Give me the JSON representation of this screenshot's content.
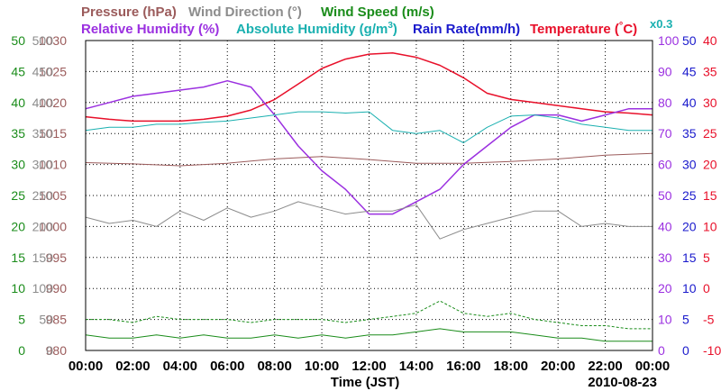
{
  "chart_data": {
    "type": "line",
    "date": "2010-08-23",
    "xlabel": "Time (JST)",
    "x_ticks": [
      "00:00",
      "02:00",
      "04:00",
      "06:00",
      "08:00",
      "10:00",
      "12:00",
      "14:00",
      "16:00",
      "18:00",
      "20:00",
      "22:00",
      "00:00"
    ],
    "xlim": [
      0,
      24
    ],
    "grid": true,
    "legend_row1": [
      {
        "text": "Pressure (hPa)",
        "color": "#9b5b5b"
      },
      {
        "text": "Wind Direction (°)",
        "color": "#8c8c8c"
      },
      {
        "text": "Wind Speed (m/s)",
        "color": "#1a8c1a"
      }
    ],
    "legend_row2": [
      {
        "text": "Relative Humidity (%)",
        "color": "#9b30e0"
      },
      {
        "text": "Absolute Humidity (g/m",
        "sup": "3",
        "close": ")",
        "color": "#1ab0b0"
      },
      {
        "text": "Rain Rate(mm/h)",
        "color": "#1a1acc"
      },
      {
        "text": "Temperature (",
        "deg": "°",
        "unit": "C)",
        "color": "#e8102a"
      }
    ],
    "rain_scale_note": {
      "text": "x0.3",
      "color": "#1ab0b0"
    },
    "axes": [
      {
        "name": "pressure",
        "unit": "hPa",
        "color": "#9b5b5b",
        "side": "left",
        "range": [
          980,
          1030
        ],
        "ticks": [
          "1030",
          "1025",
          "1020",
          "1015",
          "1010",
          "1005",
          "1000",
          "995",
          "990",
          "985",
          "980"
        ]
      },
      {
        "name": "wind-direction",
        "unit": "°",
        "color": "#8c8c8c",
        "side": "left",
        "range": [
          0,
          500
        ],
        "ticks": [
          "500",
          "450",
          "400",
          "350",
          "300",
          "250",
          "200",
          "150",
          "100",
          "50",
          "0"
        ]
      },
      {
        "name": "wind-speed",
        "unit": "m/s",
        "color": "#1a8c1a",
        "side": "left",
        "range": [
          0,
          50
        ],
        "ticks": [
          "50",
          "45",
          "40",
          "35",
          "30",
          "25",
          "20",
          "15",
          "10",
          "5",
          "0"
        ]
      },
      {
        "name": "relative-humidity",
        "unit": "%",
        "color": "#9b30e0",
        "side": "right",
        "range": [
          0,
          100
        ],
        "ticks": [
          "100",
          "90",
          "80",
          "70",
          "60",
          "50",
          "40",
          "30",
          "20",
          "10",
          "0"
        ]
      },
      {
        "name": "rain-rate",
        "unit": "mm/h",
        "color": "#1a1acc",
        "side": "right",
        "range": [
          0,
          50
        ],
        "ticks": [
          "50",
          "45",
          "40",
          "35",
          "30",
          "25",
          "20",
          "15",
          "10",
          "5",
          "0"
        ]
      },
      {
        "name": "temperature",
        "unit": "°C",
        "color": "#e8102a",
        "side": "right",
        "range": [
          -10,
          40
        ],
        "ticks": [
          "40",
          "35",
          "30",
          "25",
          "20",
          "15",
          "10",
          "5",
          "0",
          "-5",
          "-10"
        ]
      }
    ],
    "series": [
      {
        "name": "Pressure (hPa)",
        "color": "#9b5b5b",
        "axis": "pressure",
        "x": [
          0,
          2,
          4,
          6,
          8,
          10,
          12,
          14,
          16,
          18,
          20,
          22,
          24
        ],
        "y": [
          1010.3,
          1010.1,
          1009.8,
          1010.2,
          1010.9,
          1011.3,
          1010.8,
          1010.2,
          1010.2,
          1010.5,
          1010.9,
          1011.5,
          1011.8
        ]
      },
      {
        "name": "Temperature (°C)",
        "color": "#e8102a",
        "axis": "temperature",
        "x": [
          0,
          1,
          2,
          3,
          4,
          5,
          6,
          7,
          8,
          9,
          10,
          11,
          12,
          13,
          14,
          15,
          16,
          17,
          18,
          19,
          20,
          21,
          22,
          23,
          24
        ],
        "y": [
          27.7,
          27.3,
          27.0,
          27.0,
          27.0,
          27.3,
          27.8,
          28.8,
          30.5,
          33.0,
          35.5,
          37.0,
          37.8,
          38.0,
          37.3,
          36.0,
          34.0,
          31.5,
          30.5,
          30.0,
          29.5,
          29.0,
          28.5,
          28.3,
          28.0
        ]
      },
      {
        "name": "Relative Humidity (%)",
        "color": "#9b30e0",
        "axis": "relative-humidity",
        "x": [
          0,
          1,
          2,
          3,
          4,
          5,
          6,
          7,
          8,
          9,
          10,
          11,
          12,
          13,
          14,
          15,
          16,
          17,
          18,
          19,
          20,
          21,
          22,
          23,
          24
        ],
        "y": [
          78,
          80,
          82,
          83,
          84,
          85,
          87,
          85,
          76,
          66,
          58,
          52,
          44,
          44,
          48,
          52,
          60,
          66,
          72,
          76,
          76,
          74,
          76,
          78,
          78
        ]
      },
      {
        "name": "Absolute Humidity (g/m3)",
        "color": "#1ab0b0",
        "axis": "rain-rate",
        "x": [
          0,
          1,
          2,
          3,
          4,
          5,
          6,
          7,
          8,
          9,
          10,
          11,
          12,
          13,
          14,
          15,
          16,
          17,
          18,
          19,
          20,
          21,
          22,
          23,
          24
        ],
        "y": [
          35.5,
          36.0,
          36.0,
          36.5,
          36.5,
          36.8,
          37.0,
          37.5,
          38.0,
          38.5,
          38.5,
          38.3,
          38.5,
          35.5,
          35.0,
          35.5,
          33.5,
          36.0,
          37.8,
          38.0,
          37.5,
          36.5,
          36.0,
          35.5,
          35.5
        ]
      },
      {
        "name": "Wind Direction (°)",
        "color": "#8c8c8c",
        "axis": "wind-direction",
        "x": [
          0,
          1,
          2,
          3,
          4,
          5,
          6,
          7,
          8,
          9,
          10,
          11,
          12,
          13,
          14,
          15,
          16,
          17,
          18,
          19,
          20,
          21,
          22,
          23,
          24
        ],
        "y": [
          215,
          205,
          210,
          200,
          225,
          210,
          230,
          215,
          225,
          240,
          230,
          220,
          225,
          225,
          235,
          180,
          195,
          205,
          215,
          225,
          225,
          200,
          205,
          200,
          200
        ]
      },
      {
        "name": "Wind Speed (m/s) max",
        "color": "#1a8c1a",
        "axis": "wind-speed",
        "x": [
          0,
          1,
          2,
          3,
          4,
          5,
          6,
          7,
          8,
          9,
          10,
          11,
          12,
          13,
          14,
          15,
          16,
          17,
          18,
          19,
          20,
          21,
          22,
          23,
          24
        ],
        "y": [
          5.0,
          5.0,
          4.5,
          5.5,
          5.0,
          5.0,
          5.0,
          4.5,
          5.0,
          5.0,
          5.0,
          4.5,
          5.0,
          5.5,
          6.0,
          8.0,
          6.0,
          5.5,
          6.0,
          5.0,
          4.5,
          4.0,
          4.0,
          3.5,
          3.5
        ]
      },
      {
        "name": "Wind Speed (m/s) mean",
        "color": "#1a8c1a",
        "axis": "wind-speed",
        "x": [
          0,
          1,
          2,
          3,
          4,
          5,
          6,
          7,
          8,
          9,
          10,
          11,
          12,
          13,
          14,
          15,
          16,
          17,
          18,
          19,
          20,
          21,
          22,
          23,
          24
        ],
        "y": [
          2.5,
          2.0,
          2.0,
          2.5,
          2.0,
          2.5,
          2.0,
          2.0,
          2.5,
          2.0,
          2.5,
          2.0,
          2.5,
          2.5,
          3.0,
          3.5,
          3.0,
          3.0,
          3.0,
          2.5,
          2.0,
          2.0,
          1.5,
          1.5,
          1.5
        ]
      },
      {
        "name": "Rain Rate (mm/h)",
        "color": "#1a1acc",
        "axis": "rain-rate",
        "x": [
          0,
          24
        ],
        "y": [
          0,
          0
        ]
      }
    ]
  }
}
